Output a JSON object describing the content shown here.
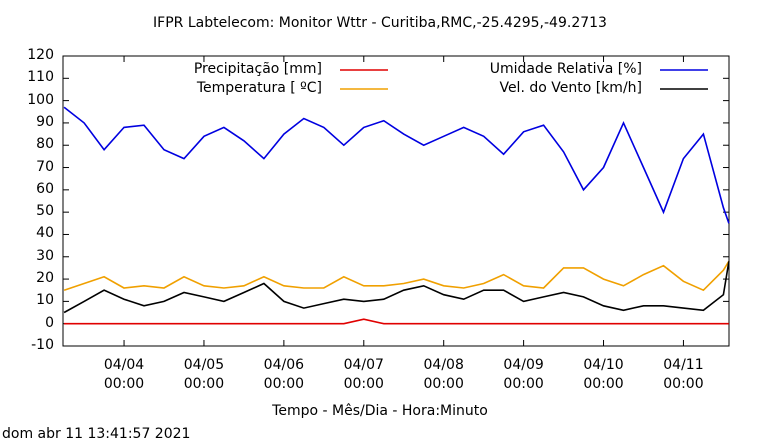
{
  "chart_data": {
    "type": "line",
    "title": "IFPR Labtelecom: Monitor Wttr - Curitiba,RMC,-25.4295,-49.2713",
    "x_label": "Tempo - Mês/Dia - Hora:Minuto",
    "footer": "dom abr 11 13:41:57 2021",
    "x": [
      "04/03 06:00",
      "04/03 12:00",
      "04/03 18:00",
      "04/04 00:00",
      "04/04 06:00",
      "04/04 12:00",
      "04/04 18:00",
      "04/05 00:00",
      "04/05 06:00",
      "04/05 12:00",
      "04/05 18:00",
      "04/06 00:00",
      "04/06 06:00",
      "04/06 12:00",
      "04/06 18:00",
      "04/07 00:00",
      "04/07 06:00",
      "04/07 12:00",
      "04/07 18:00",
      "04/08 00:00",
      "04/08 06:00",
      "04/08 12:00",
      "04/08 18:00",
      "04/09 00:00",
      "04/09 06:00",
      "04/09 12:00",
      "04/09 18:00",
      "04/10 00:00",
      "04/10 06:00",
      "04/10 12:00",
      "04/10 18:00",
      "04/11 00:00",
      "04/11 06:00",
      "04/11 12:00",
      "04/11 13:40"
    ],
    "xlim": [
      "04/03 05:40",
      "04/11 13:41"
    ],
    "xticks": [
      {
        "value": "04/04 00:00",
        "label": "04/04\n00:00"
      },
      {
        "value": "04/05 00:00",
        "label": "04/05\n00:00"
      },
      {
        "value": "04/06 00:00",
        "label": "04/06\n00:00"
      },
      {
        "value": "04/07 00:00",
        "label": "04/07\n00:00"
      },
      {
        "value": "04/08 00:00",
        "label": "04/08\n00:00"
      },
      {
        "value": "04/09 00:00",
        "label": "04/09\n00:00"
      },
      {
        "value": "04/10 00:00",
        "label": "04/10\n00:00"
      },
      {
        "value": "04/11 00:00",
        "label": "04/11\n00:00"
      }
    ],
    "ylim": [
      -10,
      120
    ],
    "yticks": [
      -10,
      0,
      10,
      20,
      30,
      40,
      50,
      60,
      70,
      80,
      90,
      100,
      110,
      120
    ],
    "series": [
      {
        "name": "Precipitação [mm]",
        "color": "#e00000",
        "values": [
          0,
          0,
          0,
          0,
          0,
          0,
          0,
          0,
          0,
          0,
          0,
          0,
          0,
          0,
          0,
          2,
          0,
          0,
          0,
          0,
          0,
          0,
          0,
          0,
          0,
          0,
          0,
          0,
          0,
          0,
          0,
          0,
          0,
          0,
          0
        ]
      },
      {
        "name": "Umidade Relativa [%]",
        "color": "#0000e0",
        "values": [
          97,
          90,
          78,
          88,
          89,
          78,
          74,
          84,
          88,
          82,
          74,
          85,
          92,
          88,
          80,
          88,
          91,
          85,
          80,
          84,
          88,
          84,
          76,
          86,
          89,
          77,
          60,
          70,
          90,
          70,
          50,
          74,
          85,
          52,
          45
        ]
      },
      {
        "name": "Temperatura [ ºC]",
        "color": "#f0a000",
        "values": [
          15,
          18,
          21,
          16,
          17,
          16,
          21,
          17,
          16,
          17,
          21,
          17,
          16,
          16,
          21,
          17,
          17,
          18,
          20,
          17,
          16,
          18,
          22,
          17,
          16,
          25,
          25,
          20,
          17,
          22,
          26,
          19,
          15,
          24,
          28
        ]
      },
      {
        "name": "Vel. do Vento [km/h]",
        "color": "#000000",
        "values": [
          5,
          10,
          15,
          11,
          8,
          10,
          14,
          12,
          10,
          14,
          18,
          10,
          7,
          9,
          11,
          10,
          11,
          15,
          17,
          13,
          11,
          15,
          15,
          10,
          12,
          14,
          12,
          8,
          6,
          8,
          8,
          7,
          6,
          13,
          28
        ]
      }
    ]
  }
}
